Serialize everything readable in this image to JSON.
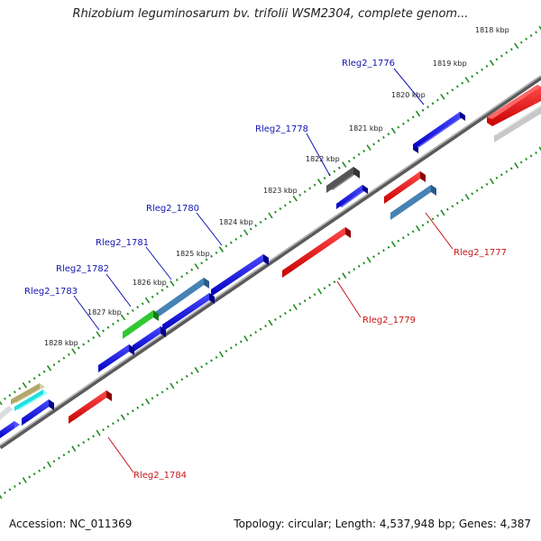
{
  "title": "Rhizobium leguminosarum bv. trifolii WSM2304, complete genom...",
  "accession": "Accession: NC_011369",
  "summary": "Topology: circular; Length: 4,537,948 bp; Genes: 4,387",
  "kbp_labels": [
    "1818 kbp",
    "1819 kbp",
    "1820 kbp",
    "1821 kbp",
    "1822 kbp",
    "1823 kbp",
    "1824 kbp",
    "1825 kbp",
    "1826 kbp",
    "1827 kbp",
    "1828 kbp"
  ],
  "top_gene_labels": [
    "Rleg2_1776",
    "Rleg2_1778",
    "Rleg2_1780",
    "Rleg2_1781",
    "Rleg2_1782",
    "Rleg2_1783"
  ],
  "bottom_gene_labels": [
    "Rleg2_1777",
    "Rleg2_1779",
    "Rleg2_1784"
  ],
  "colors": {
    "forward_gene": "#0a0ad2",
    "reverse_gene": "#e00000",
    "steelblue_gene": "#4682b4",
    "green_gene": "#32c832",
    "gray_gene": "#555555",
    "lightgray_gene": "#b8b8b8",
    "cyan_gene": "#20e0e0",
    "khaki_gene": "#b0a870",
    "backbone": "#888888",
    "ticks": "#1e8c1e",
    "top_label": "#1414b4",
    "bottom_label": "#c81414"
  }
}
